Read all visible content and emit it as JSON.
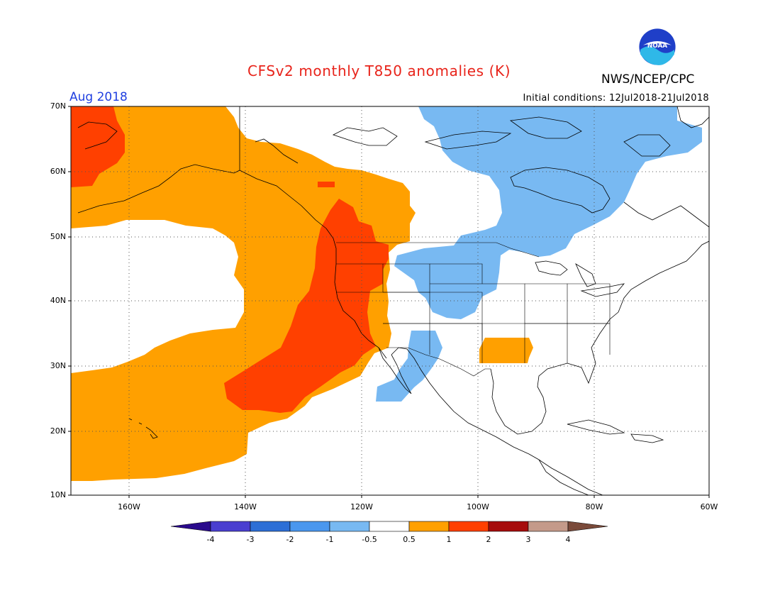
{
  "header": {
    "title": "CFSv2 monthly T850 anomalies (K)",
    "agency": "NWS/NCEP/CPC",
    "period": "Aug 2018",
    "initial_conditions": "Initial conditions: 12Jul2018-21Jul2018",
    "logo_text": "NOAA"
  },
  "axes": {
    "lat_labels": [
      "70N",
      "60N",
      "50N",
      "40N",
      "30N",
      "20N",
      "10N"
    ],
    "lon_labels": [
      "160W",
      "140W",
      "120W",
      "100W",
      "80W",
      "60W"
    ]
  },
  "colorbar": {
    "labels": [
      "-4",
      "-3",
      "-2",
      "-1",
      "-0.5",
      "0.5",
      "1",
      "2",
      "3",
      "4"
    ],
    "colors": [
      "#2a0a8c",
      "#4a3fd0",
      "#2d6fd6",
      "#4a97ee",
      "#78b9f2",
      "#ffffff",
      "#ffa000",
      "#ff4000",
      "#a60c0c",
      "#c49a8a",
      "#7a4a3a"
    ]
  },
  "colors": {
    "title": "#e8241b",
    "period": "#1f3fe0",
    "warm1": "#ffa000",
    "warm2": "#ff4000",
    "cool1": "#78b9f2"
  }
}
